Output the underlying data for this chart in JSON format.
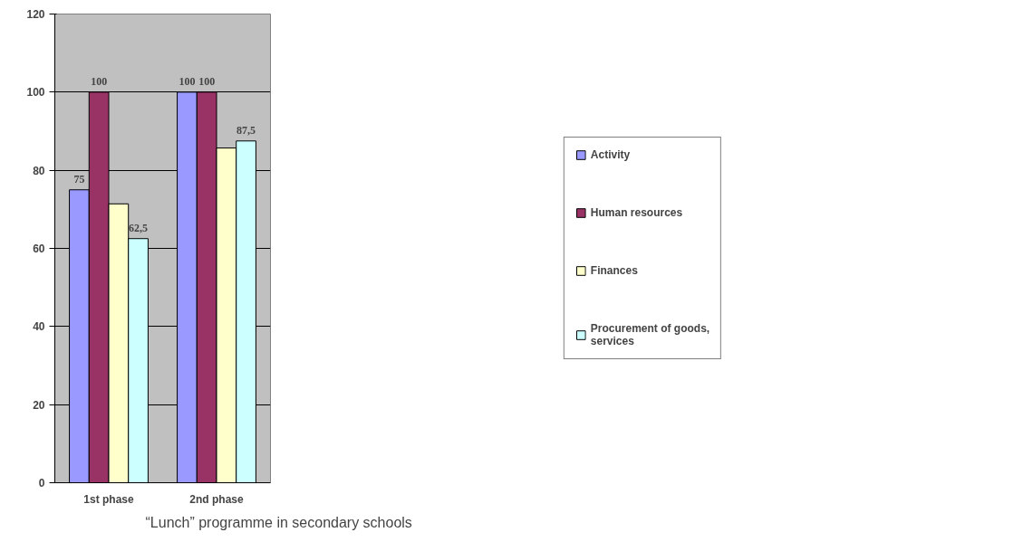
{
  "chart_data": {
    "type": "bar",
    "categories": [
      "1st phase",
      "2nd phase"
    ],
    "series": [
      {
        "name": "Activity",
        "color": "#9999ff",
        "values": [
          75,
          100
        ],
        "value_labels": [
          "75",
          "100"
        ]
      },
      {
        "name": "Human resources",
        "color": "#993366",
        "values": [
          100,
          100
        ],
        "value_labels": [
          "100",
          "100"
        ]
      },
      {
        "name": "Finances",
        "color": "#ffffcc",
        "values": [
          71.4,
          85.7
        ],
        "value_labels": [
          null,
          null
        ]
      },
      {
        "name": "Procurement of goods,\nservices",
        "color": "#ccffff",
        "values": [
          62.5,
          87.5
        ],
        "value_labels": [
          "62,5",
          "87,5"
        ]
      }
    ],
    "ylim": [
      0,
      120
    ],
    "yticks": [
      0,
      20,
      40,
      60,
      80,
      100,
      120
    ],
    "grid": "y",
    "legend": "right",
    "annotations": [
      "“Lunch” programme in secondary schools"
    ]
  }
}
